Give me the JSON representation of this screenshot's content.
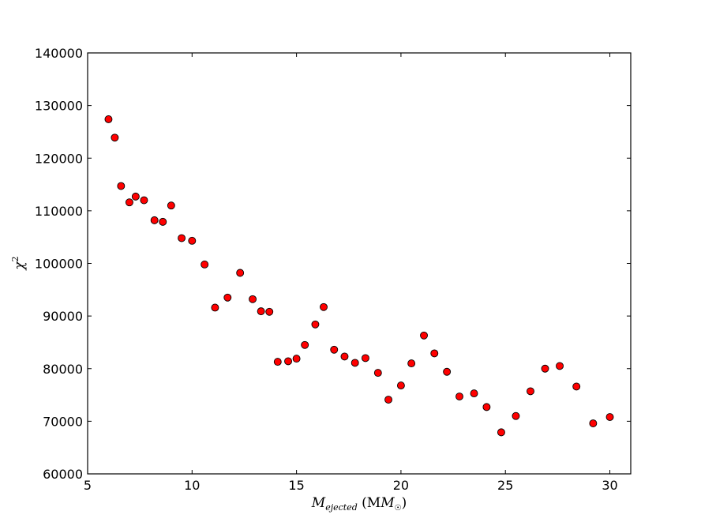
{
  "chart_data": {
    "type": "scatter",
    "title": "",
    "xlabel": {
      "main": "M",
      "sub": "ejected",
      "unit_open": " (M",
      "unit_sub": "☉",
      "unit_close": ")"
    },
    "ylabel": {
      "main": "χ",
      "sup": "2"
    },
    "xlim": [
      5,
      31
    ],
    "ylim": [
      60000,
      140000
    ],
    "xticks": [
      5,
      10,
      15,
      20,
      25,
      30
    ],
    "yticks": [
      60000,
      70000,
      80000,
      90000,
      100000,
      110000,
      120000,
      130000,
      140000
    ],
    "grid": false,
    "marker_color": "#ff0000",
    "marker_edge": "#000000",
    "x": [
      6.0,
      6.3,
      6.6,
      7.0,
      7.3,
      7.7,
      8.2,
      8.6,
      9.0,
      9.5,
      10.0,
      10.6,
      11.1,
      11.7,
      12.3,
      12.9,
      13.3,
      13.7,
      14.1,
      14.6,
      15.0,
      15.4,
      15.9,
      16.3,
      16.8,
      17.3,
      17.8,
      18.3,
      18.9,
      19.4,
      20.0,
      20.5,
      21.1,
      21.6,
      22.2,
      22.8,
      23.5,
      24.1,
      24.8,
      25.5,
      26.2,
      26.9,
      27.6,
      28.4,
      29.2,
      30.0
    ],
    "y": [
      127400,
      123900,
      114700,
      111600,
      112700,
      112000,
      108200,
      107900,
      111000,
      104800,
      104300,
      99800,
      91600,
      93500,
      98200,
      93200,
      90900,
      90800,
      81300,
      81400,
      81900,
      84500,
      88400,
      91700,
      83600,
      82300,
      81100,
      82000,
      79200,
      74100,
      76800,
      81000,
      86300,
      82900,
      79400,
      74700,
      75300,
      72700,
      67900,
      71000,
      75700,
      80000,
      80500,
      76600,
      69600,
      70800
    ]
  }
}
